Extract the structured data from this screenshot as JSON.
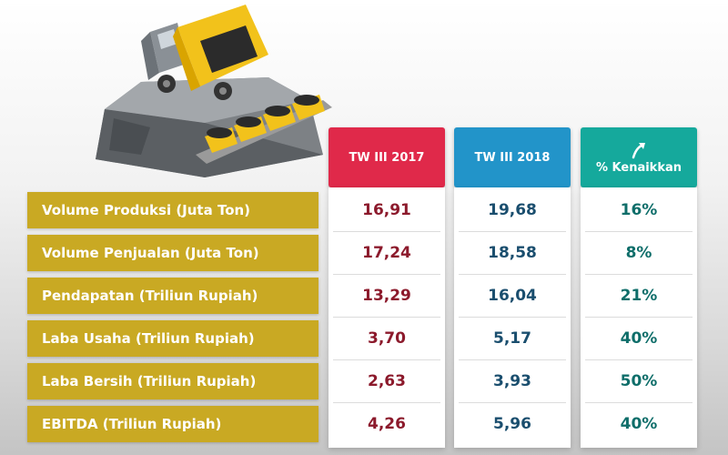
{
  "chart_data": {
    "type": "table",
    "columns": [
      "TW III 2017",
      "TW III 2018",
      "% Kenaikkan"
    ],
    "rows": [
      {
        "label": "Volume Produksi (Juta Ton)",
        "values": [
          "16,91",
          "19,68",
          "16%"
        ]
      },
      {
        "label": "Volume Penjualan (Juta Ton)",
        "values": [
          "17,24",
          "18,58",
          "8%"
        ]
      },
      {
        "label": "Pendapatan (Triliun Rupiah)",
        "values": [
          "13,29",
          "16,04",
          "21%"
        ]
      },
      {
        "label": "Laba Usaha (Triliun Rupiah)",
        "values": [
          "3,70",
          "5,17",
          "40%"
        ]
      },
      {
        "label": "Laba Bersih (Triliun Rupiah)",
        "values": [
          "2,63",
          "3,93",
          "50%"
        ]
      },
      {
        "label": "EBITDA (Triliun Rupiah)",
        "values": [
          "4,26",
          "5,96",
          "40%"
        ]
      }
    ]
  },
  "colors": {
    "label_bg": "#c9a923",
    "header_2017": "#e0294a",
    "header_2018": "#2294c9",
    "header_pct": "#15a99c",
    "value_2017": "#8c1a2c",
    "value_2018": "#1a4e6e",
    "value_pct": "#0f6e6a"
  },
  "icons": {
    "illustration": "coal-dump-truck-mining-illustration",
    "increase": "curved-up-arrow-icon"
  }
}
